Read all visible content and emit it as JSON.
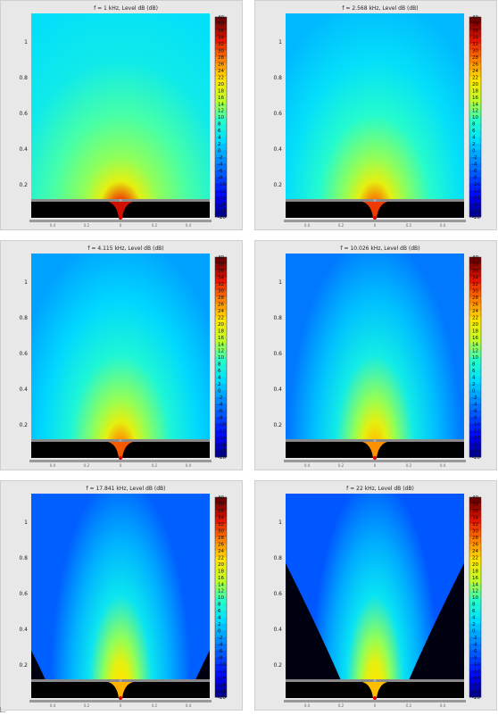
{
  "chart_data": [
    {
      "type": "heatmap",
      "title": "f = 1 kHz, Level dB  (dB)",
      "yticks": [
        "1",
        "0.8",
        "0.6",
        "0.4",
        "0.2"
      ],
      "xticks": [
        "0.4",
        "0.2",
        "0",
        "0.2",
        "0.4"
      ],
      "colorbar_ticks": [
        40,
        38,
        36,
        34,
        32,
        30,
        28,
        26,
        24,
        22,
        20,
        18,
        16,
        14,
        12,
        10,
        8,
        6,
        4,
        2,
        0,
        -2,
        -4,
        -6,
        -8,
        -10,
        -12,
        -14,
        -16,
        -18,
        -20
      ],
      "colorbar_range": [
        -20,
        40
      ],
      "frequency_khz": 1
    },
    {
      "type": "heatmap",
      "title": "f = 2.568 kHz, Level dB  (dB)",
      "yticks": [
        "1",
        "0.8",
        "0.6",
        "0.4",
        "0.2"
      ],
      "xticks": [
        "0.4",
        "0.2",
        "0",
        "0.2",
        "0.4"
      ],
      "colorbar_ticks": [
        40,
        38,
        36,
        34,
        32,
        30,
        28,
        26,
        24,
        22,
        20,
        18,
        16,
        14,
        12,
        10,
        8,
        6,
        4,
        2,
        0,
        -2,
        -4,
        -6,
        -8,
        -10,
        -12,
        -14,
        -16,
        -18,
        -20
      ],
      "colorbar_range": [
        -20,
        40
      ],
      "frequency_khz": 2.568
    },
    {
      "type": "heatmap",
      "title": "f = 4.115 kHz, Level dB  (dB)",
      "yticks": [
        "1",
        "0.8",
        "0.6",
        "0.4",
        "0.2"
      ],
      "xticks": [
        "0.4",
        "0.2",
        "0",
        "0.2",
        "0.4"
      ],
      "colorbar_ticks": [
        40,
        38,
        36,
        34,
        32,
        30,
        28,
        26,
        24,
        22,
        20,
        18,
        16,
        14,
        12,
        10,
        8,
        6,
        4,
        2,
        0,
        -2,
        -4,
        -6,
        -8,
        -10,
        -12,
        -14,
        -16,
        -18,
        -20
      ],
      "colorbar_range": [
        -20,
        40
      ],
      "frequency_khz": 4.115
    },
    {
      "type": "heatmap",
      "title": "f = 10.026 kHz, Level dB  (dB)",
      "yticks": [
        "1",
        "0.8",
        "0.6",
        "0.4",
        "0.2"
      ],
      "xticks": [
        "0.4",
        "0.2",
        "0",
        "0.2",
        "0.4"
      ],
      "colorbar_ticks": [
        40,
        38,
        36,
        34,
        32,
        30,
        28,
        26,
        24,
        22,
        20,
        18,
        16,
        14,
        12,
        10,
        8,
        6,
        4,
        2,
        0,
        -2,
        -4,
        -6,
        -8,
        -10,
        -12,
        -14,
        -16,
        -18,
        -20
      ],
      "colorbar_range": [
        -20,
        40
      ],
      "frequency_khz": 10.026
    },
    {
      "type": "heatmap",
      "title": "f = 17.841 kHz, Level dB  (dB)",
      "yticks": [
        "1",
        "0.8",
        "0.6",
        "0.4",
        "0.2"
      ],
      "xticks": [
        "0.4",
        "0.2",
        "0",
        "0.2",
        "0.4"
      ],
      "colorbar_ticks": [
        40,
        38,
        36,
        34,
        32,
        30,
        28,
        26,
        24,
        22,
        20,
        18,
        16,
        14,
        12,
        10,
        8,
        6,
        4,
        2,
        0,
        -2,
        -4,
        -6,
        -8,
        -10,
        -12,
        -14,
        -16,
        -18,
        -20
      ],
      "colorbar_range": [
        -20,
        40
      ],
      "frequency_khz": 17.841
    },
    {
      "type": "heatmap",
      "title": "f = 22 kHz, Level dB  (dB)",
      "yticks": [
        "1",
        "0.8",
        "0.6",
        "0.4",
        "0.2"
      ],
      "xticks": [
        "0.4",
        "0.2",
        "0",
        "0.2",
        "0.4"
      ],
      "colorbar_ticks": [
        40,
        38,
        36,
        34,
        32,
        30,
        28,
        26,
        24,
        22,
        20,
        18,
        16,
        14,
        12,
        10,
        8,
        6,
        4,
        2,
        0,
        -2,
        -4,
        -6,
        -8,
        -10,
        -12,
        -14,
        -16,
        -18,
        -20
      ],
      "colorbar_range": [
        -20,
        40
      ],
      "frequency_khz": 22
    }
  ]
}
